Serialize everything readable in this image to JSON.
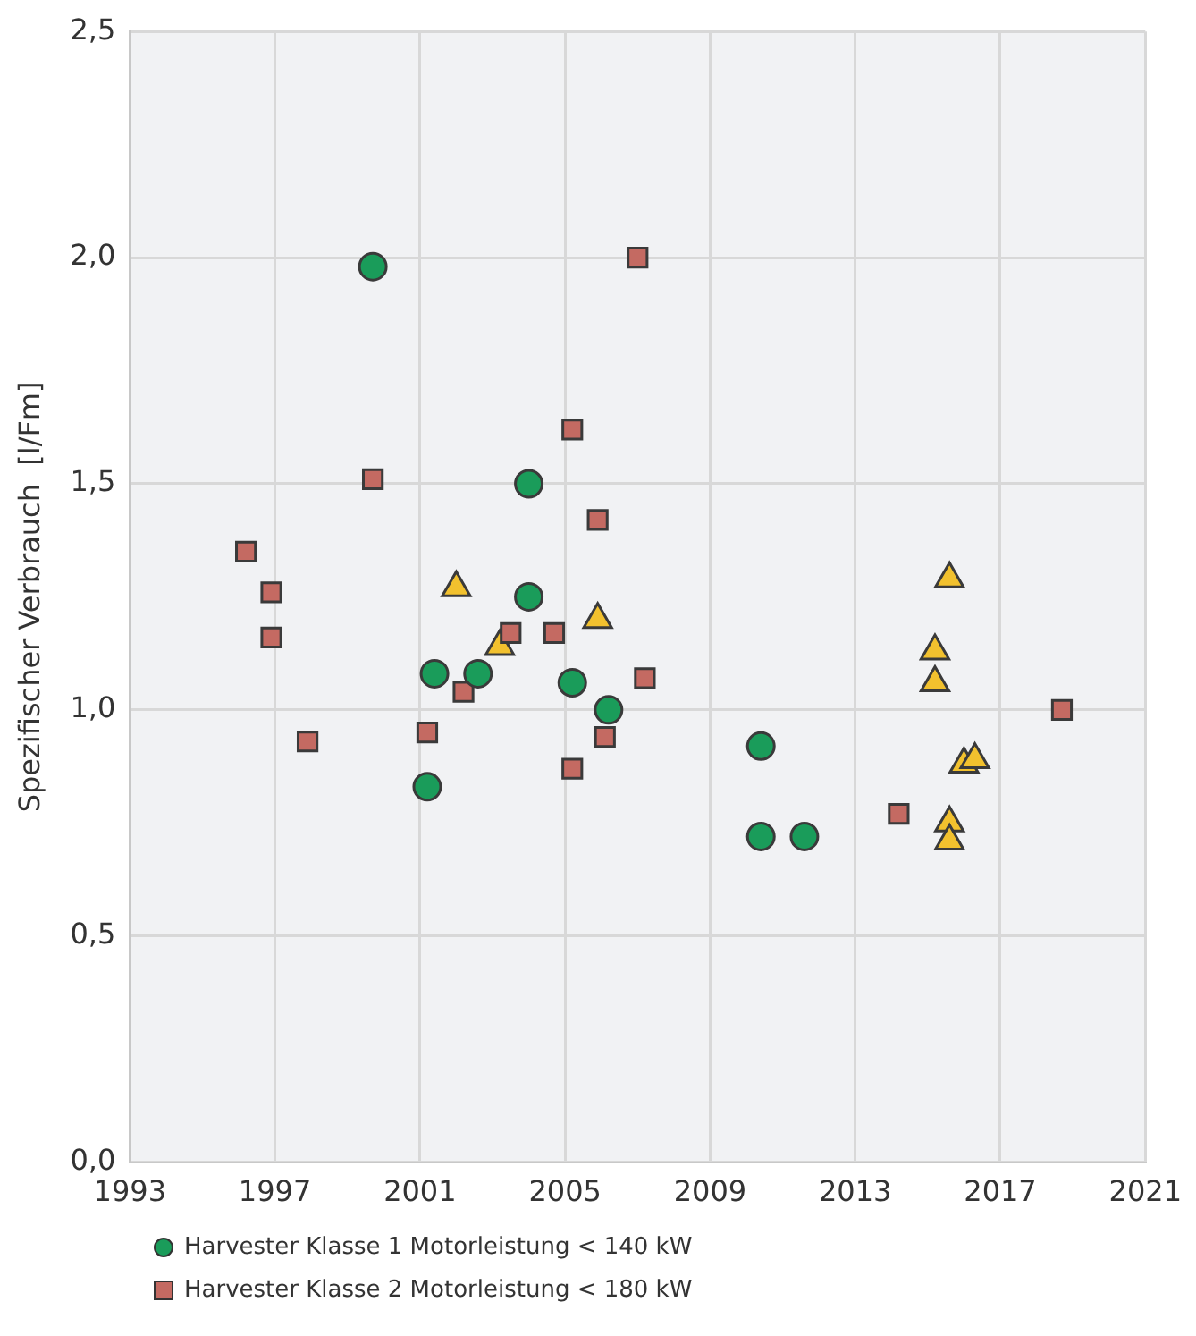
{
  "chart_data": {
    "type": "scatter",
    "ylabel": "Spezifischer Verbrauch  [l/Fm]",
    "xlim": [
      1993,
      2021
    ],
    "xticks": [
      1993,
      1997,
      2001,
      2005,
      2009,
      2013,
      2017,
      2021
    ],
    "ylim": [
      0,
      2.5
    ],
    "yticks": [
      {
        "value": 0,
        "label": "0,0"
      },
      {
        "value": 0.5,
        "label": "0,5"
      },
      {
        "value": 1,
        "label": "1,0"
      },
      {
        "value": 1.5,
        "label": "1,5"
      },
      {
        "value": 2,
        "label": "2,0"
      },
      {
        "value": 2.5,
        "label": "2,5"
      }
    ],
    "grid": true,
    "legend": "bottom",
    "series": [
      {
        "name": "Harvester Klasse 1 Motorleistung < 140 kW",
        "color": "#1a9c5a",
        "marker": "circle",
        "x": [
          1999.7,
          2001.4,
          2001.2,
          2002.6,
          2004.0,
          2004.0,
          2005.2,
          2006.2,
          2010.4,
          2010.4,
          2011.6
        ],
        "values": [
          1.98,
          1.08,
          0.83,
          1.08,
          1.5,
          1.25,
          1.06,
          1.0,
          0.92,
          0.72,
          0.72
        ]
      },
      {
        "name": "Harvester Klasse 2 Motorleistung < 180 kW",
        "color": "#c46a62",
        "marker": "square",
        "x": [
          1996.2,
          1996.9,
          1996.9,
          1997.9,
          1999.7,
          2001.2,
          2002.2,
          2003.5,
          2004.7,
          2005.2,
          2005.2,
          2005.9,
          2006.1,
          2007.0,
          2007.2,
          2014.2,
          2018.7
        ],
        "values": [
          1.35,
          1.26,
          1.16,
          0.93,
          1.51,
          0.95,
          1.04,
          1.17,
          1.17,
          1.62,
          0.87,
          1.42,
          0.94,
          2.0,
          1.07,
          0.77,
          1.0
        ]
      },
      {
        "color": "#f2c12e",
        "marker": "triangle",
        "x": [
          2002.0,
          2003.2,
          2005.9,
          2015.6,
          2015.2,
          2015.2,
          2016.0,
          2016.3,
          2015.6,
          2015.6
        ],
        "values": [
          1.27,
          1.14,
          1.2,
          1.29,
          1.13,
          1.06,
          0.88,
          0.89,
          0.75,
          0.71
        ]
      }
    ]
  }
}
